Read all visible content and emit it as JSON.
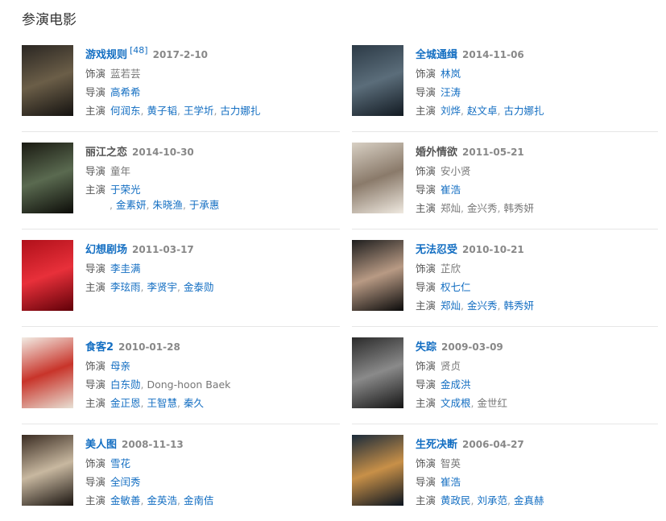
{
  "heading": "参演电影",
  "movies": [
    {
      "title": "游戏规则",
      "title_link": true,
      "sup": "[48]",
      "date": "2017-2-10",
      "poster_colors": [
        "#2a2622",
        "#6b5e48",
        "#141210"
      ],
      "rows": [
        {
          "label": "饰演",
          "names": [
            {
              "text": "蓝若芸",
              "link": false
            }
          ]
        },
        {
          "label": "导演",
          "names": [
            {
              "text": "高希希",
              "link": true
            }
          ]
        },
        {
          "label": "主演",
          "names": [
            {
              "text": "何润东",
              "link": true
            },
            {
              "text": "黄子韬",
              "link": true
            },
            {
              "text": "王学圻",
              "link": true
            },
            {
              "text": "古力娜扎",
              "link": true
            }
          ]
        }
      ]
    },
    {
      "title": "全城通缉",
      "title_link": true,
      "date": "2014-11-06",
      "poster_colors": [
        "#2c3a46",
        "#5b6d7a",
        "#121a22"
      ],
      "rows": [
        {
          "label": "饰演",
          "names": [
            {
              "text": "林岚",
              "link": true
            }
          ]
        },
        {
          "label": "导演",
          "names": [
            {
              "text": "汪涛",
              "link": true
            }
          ]
        },
        {
          "label": "主演",
          "names": [
            {
              "text": "刘烨",
              "link": true
            },
            {
              "text": "赵文卓",
              "link": true
            },
            {
              "text": "古力娜扎",
              "link": true
            }
          ]
        }
      ]
    },
    {
      "title": "丽江之恋",
      "title_link": false,
      "date": "2014-10-30",
      "poster_colors": [
        "#1a1a12",
        "#5a6a50",
        "#0c0c08"
      ],
      "rows": [
        {
          "label": "导演",
          "names": [
            {
              "text": "童年",
              "link": false
            }
          ]
        },
        {
          "label": "主演",
          "names": [
            {
              "text": "于荣光",
              "link": true
            }
          ],
          "continuation": [
            {
              "text": "金素妍",
              "link": true
            },
            {
              "text": "朱晓渔",
              "link": true
            },
            {
              "text": "于承惠",
              "link": true
            }
          ]
        }
      ]
    },
    {
      "title": "婚外情欲",
      "title_link": false,
      "date": "2011-05-21",
      "poster_colors": [
        "#d8d0c4",
        "#8a7a6a",
        "#efe9e0"
      ],
      "rows": [
        {
          "label": "饰演",
          "names": [
            {
              "text": "安小贤",
              "link": false
            }
          ]
        },
        {
          "label": "导演",
          "names": [
            {
              "text": "崔浩",
              "link": true
            }
          ]
        },
        {
          "label": "主演",
          "names": [
            {
              "text": "郑灿",
              "link": false
            },
            {
              "text": "金兴秀",
              "link": false
            },
            {
              "text": "韩秀妍",
              "link": false
            }
          ]
        }
      ]
    },
    {
      "title": "幻想剧场",
      "title_link": true,
      "date": "2011-03-17",
      "poster_colors": [
        "#b0101a",
        "#e8303a",
        "#600008"
      ],
      "rows": [
        {
          "label": "导演",
          "names": [
            {
              "text": "李圭满",
              "link": true
            }
          ]
        },
        {
          "label": "主演",
          "names": [
            {
              "text": "李玹雨",
              "link": true
            },
            {
              "text": "李贤宇",
              "link": true
            },
            {
              "text": "金泰勋",
              "link": true
            }
          ]
        }
      ]
    },
    {
      "title": "无法忍受",
      "title_link": true,
      "date": "2010-10-21",
      "poster_colors": [
        "#1e1e1e",
        "#b89a84",
        "#0a0a0a"
      ],
      "rows": [
        {
          "label": "饰演",
          "names": [
            {
              "text": "芷欣",
              "link": false
            }
          ]
        },
        {
          "label": "导演",
          "names": [
            {
              "text": "权七仁",
              "link": true
            }
          ]
        },
        {
          "label": "主演",
          "names": [
            {
              "text": "郑灿",
              "link": true
            },
            {
              "text": "金兴秀",
              "link": true
            },
            {
              "text": "韩秀妍",
              "link": true
            }
          ]
        }
      ]
    },
    {
      "title": "食客2",
      "title_link": true,
      "date": "2010-01-28",
      "poster_colors": [
        "#f2ece4",
        "#c8342a",
        "#e8e0d4"
      ],
      "rows": [
        {
          "label": "饰演",
          "names": [
            {
              "text": "母亲",
              "link": true
            }
          ]
        },
        {
          "label": "导演",
          "names": [
            {
              "text": "白东勋",
              "link": true
            },
            {
              "text": "Dong-hoon Baek",
              "link": false
            }
          ]
        },
        {
          "label": "主演",
          "names": [
            {
              "text": "金正恩",
              "link": true
            },
            {
              "text": "王智慧",
              "link": true
            },
            {
              "text": "秦久",
              "link": true
            }
          ]
        }
      ]
    },
    {
      "title": "失踪",
      "title_link": true,
      "date": "2009-03-09",
      "poster_colors": [
        "#2a2a2a",
        "#8a8a8a",
        "#141414"
      ],
      "rows": [
        {
          "label": "饰演",
          "names": [
            {
              "text": "贤贞",
              "link": false
            }
          ]
        },
        {
          "label": "导演",
          "names": [
            {
              "text": "金成洪",
              "link": true
            }
          ]
        },
        {
          "label": "主演",
          "names": [
            {
              "text": "文成根",
              "link": true
            },
            {
              "text": "金世红",
              "link": false
            }
          ]
        }
      ]
    },
    {
      "title": "美人图",
      "title_link": true,
      "date": "2008-11-13",
      "poster_colors": [
        "#3a2c22",
        "#c8b8a0",
        "#1a1410"
      ],
      "rows": [
        {
          "label": "饰演",
          "names": [
            {
              "text": "雪花",
              "link": true
            }
          ]
        },
        {
          "label": "导演",
          "names": [
            {
              "text": "全闰秀",
              "link": true
            }
          ]
        },
        {
          "label": "主演",
          "names": [
            {
              "text": "金敏善",
              "link": true
            },
            {
              "text": "金英浩",
              "link": true
            },
            {
              "text": "金南佶",
              "link": true
            }
          ]
        }
      ]
    },
    {
      "title": "生死决断",
      "title_link": true,
      "date": "2006-04-27",
      "poster_colors": [
        "#1a2a3a",
        "#c89048",
        "#0a1420"
      ],
      "rows": [
        {
          "label": "饰演",
          "names": [
            {
              "text": "智英",
              "link": false
            }
          ]
        },
        {
          "label": "导演",
          "names": [
            {
              "text": "崔浩",
              "link": true
            }
          ]
        },
        {
          "label": "主演",
          "names": [
            {
              "text": "黄政民",
              "link": true
            },
            {
              "text": "刘承范",
              "link": true
            },
            {
              "text": "金真赫",
              "link": true
            }
          ]
        }
      ]
    }
  ]
}
